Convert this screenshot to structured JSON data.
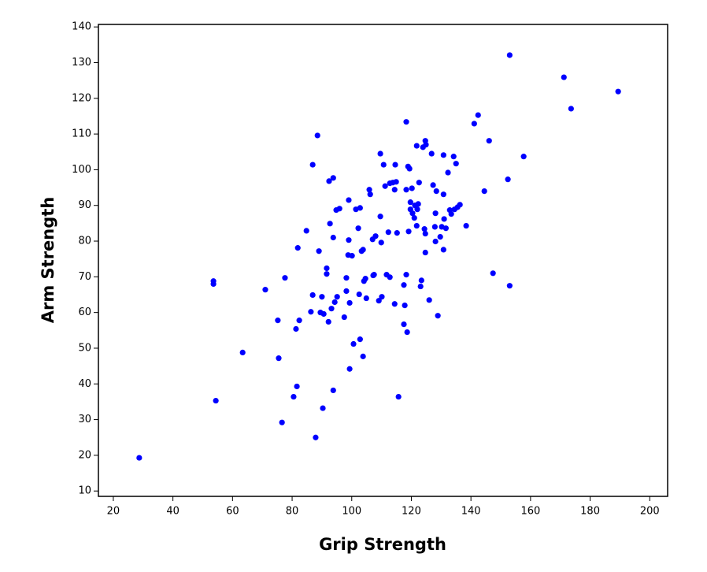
{
  "chart_data": {
    "type": "scatter",
    "xlabel": "Grip Strength",
    "ylabel": "Arm Strength",
    "color": "#0000ff",
    "xlim": [
      15,
      206
    ],
    "ylim": [
      8.5,
      140.7
    ],
    "xticks": [
      20,
      40,
      60,
      80,
      100,
      120,
      140,
      160,
      180,
      200
    ],
    "yticks": [
      10,
      20,
      30,
      40,
      50,
      60,
      70,
      80,
      90,
      100,
      110,
      120,
      130,
      140
    ],
    "x": [
      28.7,
      53.6,
      53.6,
      54.4,
      63.4,
      71,
      75.5,
      75.2,
      76.6,
      77.6,
      80.5,
      81.6,
      81.3,
      82.4,
      81.9,
      84.8,
      86.9,
      86.9,
      86.3,
      87.9,
      88.5,
      89,
      89.5,
      90.3,
      90,
      90.6,
      91.6,
      91.6,
      92.2,
      92.4,
      92.7,
      93.2,
      93.8,
      93.8,
      93.8,
      94.3,
      94.8,
      95.1,
      95.9,
      97.5,
      98.2,
      98.2,
      98.8,
      99,
      99.3,
      99,
      99.3,
      100.1,
      100.6,
      101.4,
      102.2,
      102.5,
      102.8,
      103.3,
      102.8,
      103.8,
      104.1,
      103.8,
      104.6,
      104.9,
      105.9,
      106.2,
      107,
      107.2,
      107.5,
      108,
      109.1,
      109.6,
      109.6,
      109.9,
      110.1,
      110.7,
      111.2,
      111.7,
      112.3,
      112.8,
      112.8,
      113.8,
      114.4,
      114.4,
      114.6,
      114.9,
      115.2,
      115.7,
      117.5,
      117.8,
      117.5,
      118.3,
      118.3,
      118.3,
      118.6,
      118.9,
      119.1,
      119.4,
      119.7,
      119.7,
      120.2,
      120.4,
      121,
      121.2,
      121.8,
      121.8,
      122,
      122.3,
      122.6,
      123.1,
      123.4,
      123.9,
      124.7,
      124.4,
      124.7,
      124.7,
      124.9,
      126,
      126.8,
      127.3,
      127.9,
      128.1,
      128.1,
      128.4,
      128.9,
      129.7,
      130.2,
      130.8,
      130.8,
      130.8,
      131,
      131.6,
      132.3,
      132.9,
      133.4,
      134.2,
      134.5,
      135,
      135.5,
      136.3,
      138.4,
      141.1,
      142.4,
      144.5,
      146.1,
      147.4,
      152.4,
      153,
      153,
      157.7,
      171.2,
      173.6,
      189.4
    ],
    "values": [
      19.3,
      68.8,
      68,
      35.3,
      48.8,
      66.4,
      47.2,
      57.8,
      29.2,
      69.7,
      36.4,
      39.3,
      55.4,
      57.8,
      78.1,
      82.9,
      101.4,
      64.9,
      60.2,
      25,
      109.6,
      77.2,
      60,
      33.2,
      64.4,
      59.6,
      72.4,
      70.8,
      57.4,
      96.8,
      84.9,
      61.1,
      97.7,
      81,
      38.2,
      62.9,
      88.7,
      64.4,
      89.1,
      58.7,
      69.7,
      66,
      76.1,
      80.3,
      62.7,
      91.5,
      44.2,
      75.9,
      51.2,
      88.9,
      83.6,
      65.1,
      89.3,
      77.2,
      52.5,
      47.7,
      68.8,
      77.6,
      69.5,
      64,
      94.4,
      93.1,
      80.5,
      70.4,
      70.6,
      81.4,
      63.3,
      104.5,
      86.9,
      79.6,
      64.4,
      101.4,
      95.4,
      70.6,
      82.5,
      69.9,
      96.2,
      96.4,
      94.4,
      62.4,
      101.4,
      96.6,
      82.3,
      36.4,
      67.7,
      62,
      56.7,
      113.4,
      94.4,
      70.6,
      54.5,
      100.9,
      82.7,
      100.3,
      88.9,
      90.9,
      94.8,
      87.8,
      86.5,
      90,
      106.7,
      84.3,
      88.9,
      90.4,
      96.4,
      67.3,
      69,
      106.3,
      108.1,
      83.4,
      82.1,
      76.8,
      107,
      63.5,
      104.5,
      95.7,
      84,
      87.8,
      79.9,
      94,
      59.1,
      81.2,
      84,
      104.1,
      93.1,
      77.6,
      86.2,
      83.6,
      99.2,
      88.7,
      87.6,
      103.7,
      88.9,
      101.7,
      89.5,
      90.2,
      84.3,
      112.9,
      115.3,
      94,
      108.1,
      71,
      97.3,
      67.5,
      132.1,
      103.7,
      125.9,
      117.1,
      121.9
    ]
  }
}
